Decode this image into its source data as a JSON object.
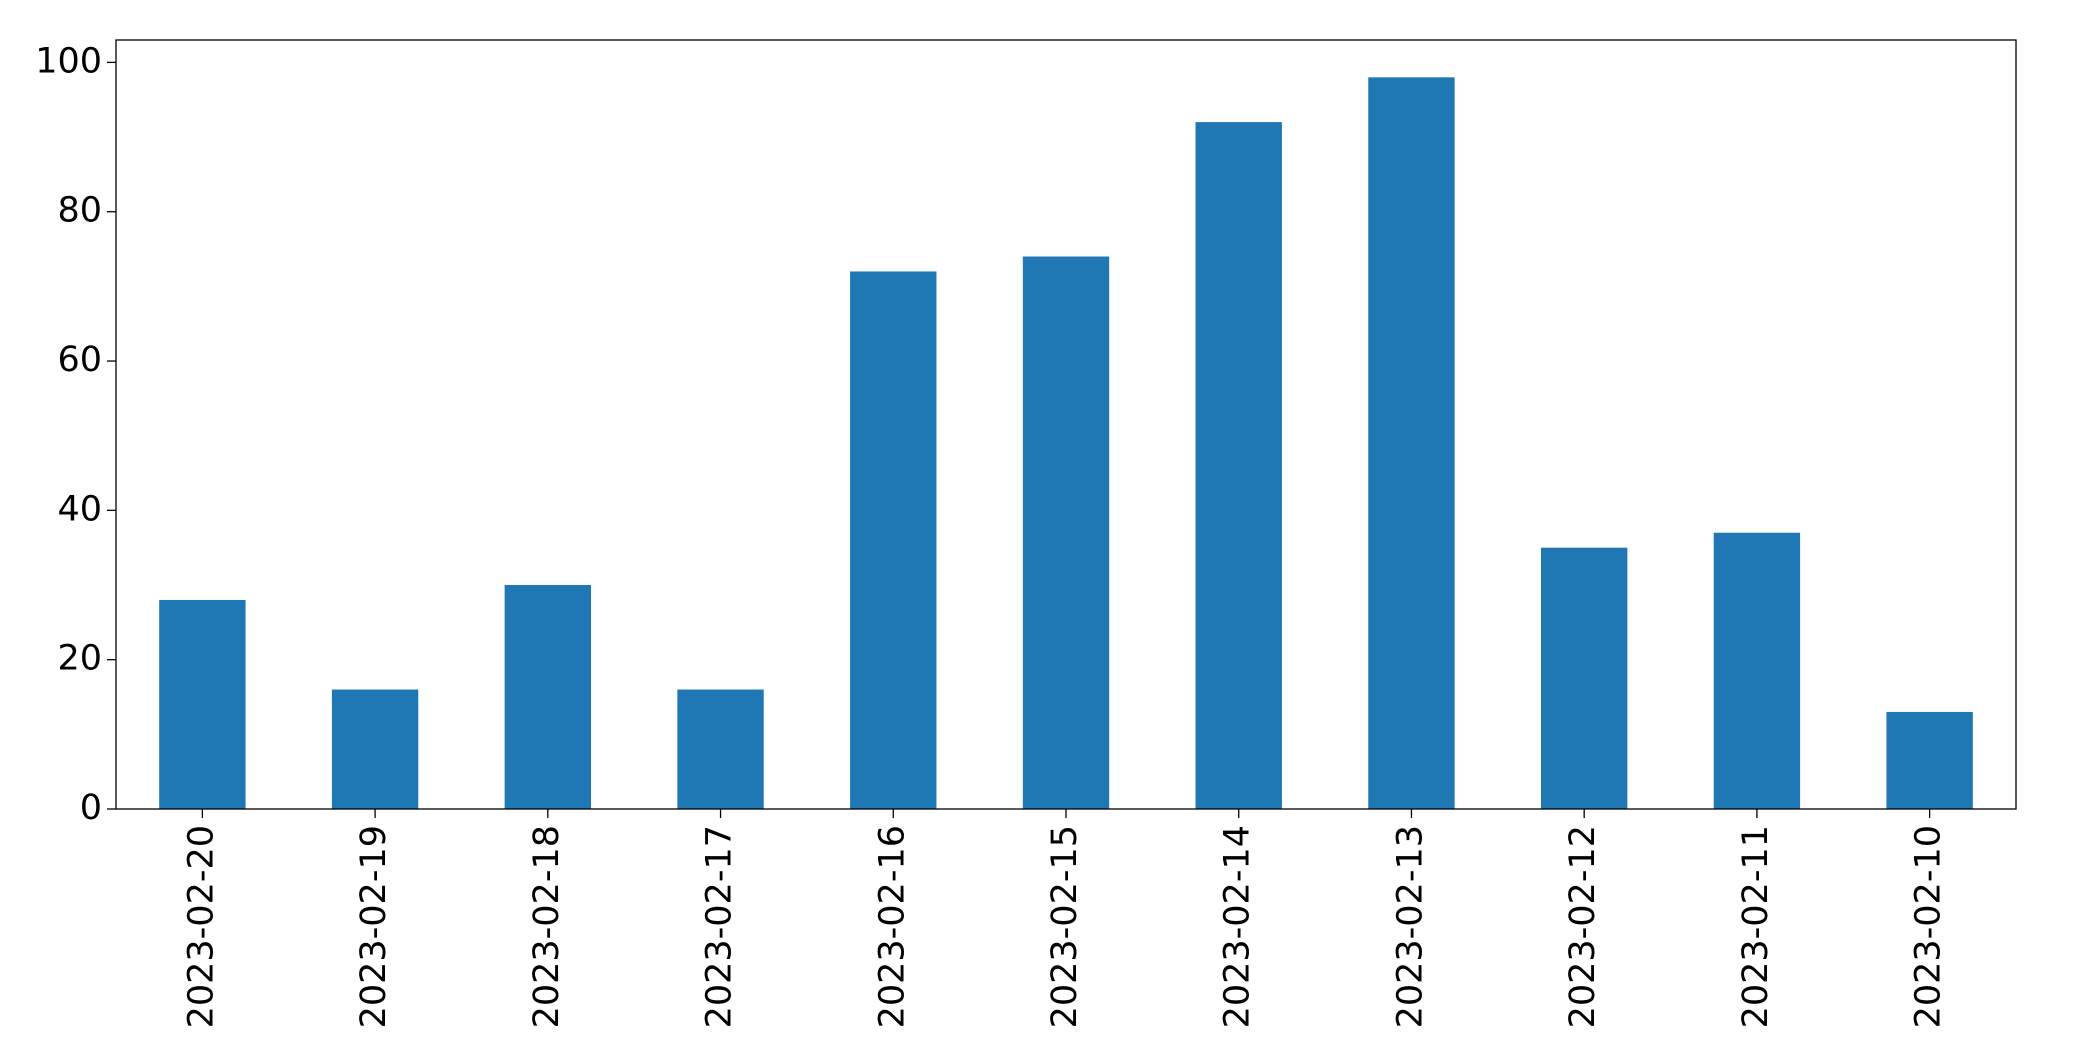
{
  "chart_data": {
    "type": "bar",
    "categories": [
      "2023-02-20",
      "2023-02-19",
      "2023-02-18",
      "2023-02-17",
      "2023-02-16",
      "2023-02-15",
      "2023-02-14",
      "2023-02-13",
      "2023-02-12",
      "2023-02-11",
      "2023-02-10"
    ],
    "values": [
      28,
      16,
      30,
      16,
      72,
      74,
      92,
      98,
      35,
      37,
      13
    ],
    "color": "#1f77b4",
    "ylim": [
      0,
      103
    ],
    "yticks": [
      0,
      20,
      40,
      60,
      80,
      100
    ],
    "grid": false
  }
}
